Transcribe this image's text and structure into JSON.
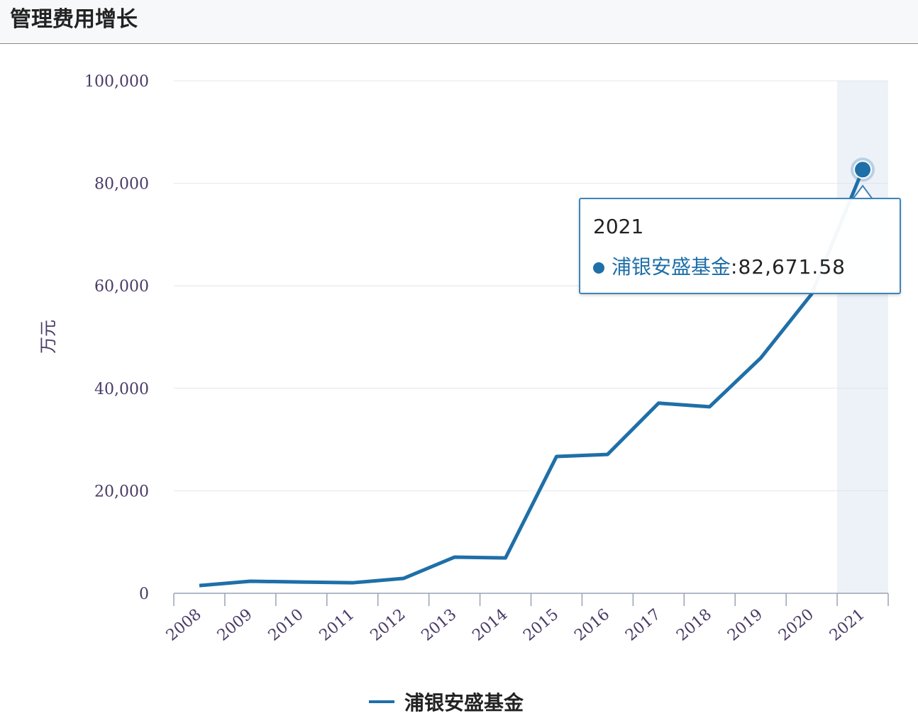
{
  "title": "管理费用增长",
  "chart_data": {
    "type": "line",
    "title": "管理费用增长",
    "ylabel": "万元",
    "xlabel": "",
    "ylim": [
      0,
      100000
    ],
    "yticks": [
      "0",
      "20,000",
      "40,000",
      "60,000",
      "80,000",
      "100,000"
    ],
    "yticks_values": [
      0,
      20000,
      40000,
      60000,
      80000,
      100000
    ],
    "categories": [
      "2008",
      "2009",
      "2010",
      "2011",
      "2012",
      "2013",
      "2014",
      "2015",
      "2016",
      "2017",
      "2018",
      "2019",
      "2020",
      "2021"
    ],
    "series": [
      {
        "name": "浦银安盛基金",
        "color": "#1f6fa8",
        "values": [
          1500,
          2350,
          2200,
          2050,
          2900,
          7050,
          6900,
          26700,
          27100,
          37100,
          36400,
          45900,
          58400,
          82671.58
        ]
      }
    ],
    "grid": true,
    "legend": "bottom-center",
    "highlighted_category": "2021"
  },
  "tooltip": {
    "year": "2021",
    "series_name": "浦银安盛基金",
    "value": ":82,671.58"
  },
  "legend": {
    "label": "浦银安盛基金"
  }
}
